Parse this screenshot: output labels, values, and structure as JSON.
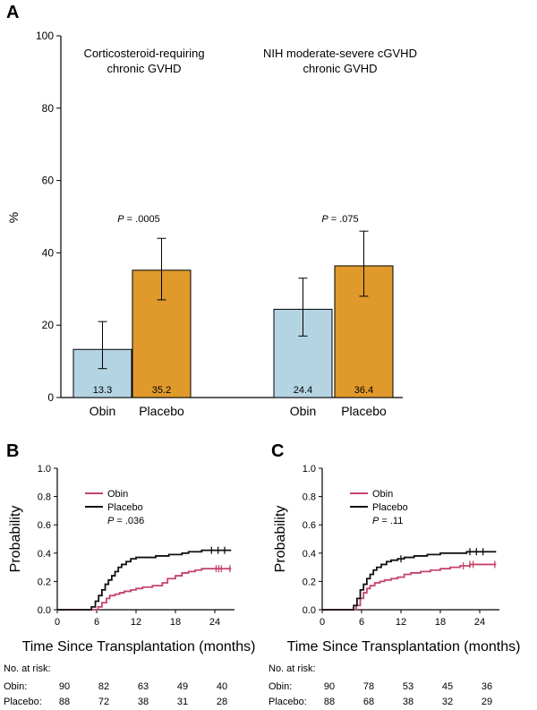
{
  "panels": {
    "a": {
      "letter": "A"
    },
    "b": {
      "letter": "B"
    },
    "c": {
      "letter": "C"
    }
  },
  "chart_data": [
    {
      "type": "bar",
      "panel": "A",
      "ylabel": "%",
      "ylim": [
        0,
        100
      ],
      "yticks": [
        0,
        20,
        40,
        60,
        80,
        100
      ],
      "groups": [
        {
          "title_lines": [
            "Corticosteroid-requiring",
            "chronic GVHD"
          ],
          "p_label": "P",
          "p_value": " = .0005",
          "bars": [
            {
              "category": "Obin",
              "value": 13.3,
              "label": "13.3",
              "ci": [
                8,
                21
              ],
              "color": "#b5d4e3"
            },
            {
              "category": "Placebo",
              "value": 35.2,
              "label": "35.2",
              "ci": [
                27,
                44
              ],
              "color": "#e09a2b"
            }
          ]
        },
        {
          "title_lines": [
            "NIH moderate-severe cGVHD",
            "chronic GVHD"
          ],
          "p_label": "P",
          "p_value": " = .075",
          "bars": [
            {
              "category": "Obin",
              "value": 24.4,
              "label": "24.4",
              "ci": [
                17,
                33
              ],
              "color": "#b5d4e3"
            },
            {
              "category": "Placebo",
              "value": 36.4,
              "label": "36.4",
              "ci": [
                28,
                46
              ],
              "color": "#e09a2b"
            }
          ]
        }
      ]
    },
    {
      "type": "line",
      "panel": "B",
      "xlabel": "Time Since Transplantation (months)",
      "ylabel": "Probability",
      "xlim": [
        0,
        27
      ],
      "ylim": [
        0,
        1.0
      ],
      "xticks": [
        0,
        6,
        12,
        18,
        24
      ],
      "yticks": [
        "0.0",
        "0.2",
        "0.4",
        "0.6",
        "0.8",
        "1.0"
      ],
      "p_label": "P",
      "p_value": " = .036",
      "series": [
        {
          "name": "Obin",
          "color": "#c4456a",
          "x": [
            0,
            5.5,
            6.2,
            6.8,
            7.5,
            8.0,
            8.8,
            9.5,
            10.2,
            11.2,
            12.0,
            13.0,
            14.5,
            16.0,
            16.8,
            18.0,
            19.0,
            20.0,
            21.0,
            22.0,
            24.0,
            26.5
          ],
          "y": [
            0,
            0,
            0.02,
            0.05,
            0.08,
            0.1,
            0.11,
            0.12,
            0.13,
            0.14,
            0.15,
            0.16,
            0.17,
            0.19,
            0.22,
            0.24,
            0.26,
            0.27,
            0.28,
            0.29,
            0.29,
            0.29
          ],
          "censor_x": [
            24.2,
            24.6,
            25.0,
            26.3
          ]
        },
        {
          "name": "Placebo",
          "color": "#111111",
          "x": [
            0,
            4.5,
            5.2,
            5.8,
            6.3,
            6.8,
            7.3,
            7.8,
            8.3,
            8.8,
            9.3,
            9.8,
            10.5,
            11.2,
            12.0,
            13.5,
            15.0,
            17.0,
            19.0,
            20.0,
            22.0,
            26.5
          ],
          "y": [
            0,
            0,
            0.02,
            0.06,
            0.1,
            0.14,
            0.18,
            0.21,
            0.24,
            0.27,
            0.3,
            0.32,
            0.34,
            0.36,
            0.37,
            0.37,
            0.38,
            0.39,
            0.4,
            0.41,
            0.42,
            0.42
          ],
          "censor_x": [
            23.5,
            24.5,
            25.5
          ]
        }
      ],
      "risk_table": {
        "title": "No. at risk:",
        "rows": [
          {
            "label": "Obin:",
            "values": [
              "90",
              "82",
              "63",
              "49",
              "40"
            ]
          },
          {
            "label": "Placebo:",
            "values": [
              "88",
              "72",
              "38",
              "31",
              "28"
            ]
          }
        ]
      }
    },
    {
      "type": "line",
      "panel": "C",
      "xlabel": "Time Since Transplantation (months)",
      "ylabel": "Probability",
      "xlim": [
        0,
        27
      ],
      "ylim": [
        0,
        1.0
      ],
      "xticks": [
        0,
        6,
        12,
        18,
        24
      ],
      "yticks": [
        "0.0",
        "0.2",
        "0.4",
        "0.6",
        "0.8",
        "1.0"
      ],
      "p_label": "P",
      "p_value": " = .11",
      "series": [
        {
          "name": "Obin",
          "color": "#c4456a",
          "x": [
            0,
            4.5,
            5.2,
            5.8,
            6.3,
            6.8,
            7.3,
            8.0,
            8.8,
            9.5,
            10.5,
            11.5,
            12.5,
            13.5,
            15.0,
            16.5,
            18.0,
            19.5,
            21.0,
            22.5,
            24.0,
            26.5
          ],
          "y": [
            0,
            0,
            0.03,
            0.08,
            0.12,
            0.15,
            0.17,
            0.19,
            0.2,
            0.21,
            0.22,
            0.23,
            0.25,
            0.26,
            0.27,
            0.28,
            0.29,
            0.3,
            0.31,
            0.32,
            0.32,
            0.32
          ],
          "censor_x": [
            21.5,
            22.5,
            23.0,
            26.3
          ]
        },
        {
          "name": "Placebo",
          "color": "#111111",
          "x": [
            0,
            4.0,
            4.8,
            5.3,
            5.8,
            6.3,
            6.8,
            7.3,
            7.8,
            8.3,
            9.0,
            9.8,
            10.5,
            11.5,
            12.5,
            14.0,
            16.0,
            18.0,
            20.0,
            22.0,
            24.0,
            26.5
          ],
          "y": [
            0,
            0,
            0.03,
            0.08,
            0.14,
            0.18,
            0.22,
            0.25,
            0.28,
            0.3,
            0.32,
            0.34,
            0.35,
            0.36,
            0.37,
            0.38,
            0.39,
            0.4,
            0.4,
            0.41,
            0.41,
            0.41
          ],
          "censor_x": [
            12.0,
            22.5,
            23.5,
            24.5
          ]
        }
      ],
      "risk_table": {
        "title": "No. at risk:",
        "rows": [
          {
            "label": "Obin:",
            "values": [
              "90",
              "78",
              "53",
              "45",
              "36"
            ]
          },
          {
            "label": "Placebo:",
            "values": [
              "88",
              "68",
              "38",
              "32",
              "29"
            ]
          }
        ]
      }
    }
  ]
}
